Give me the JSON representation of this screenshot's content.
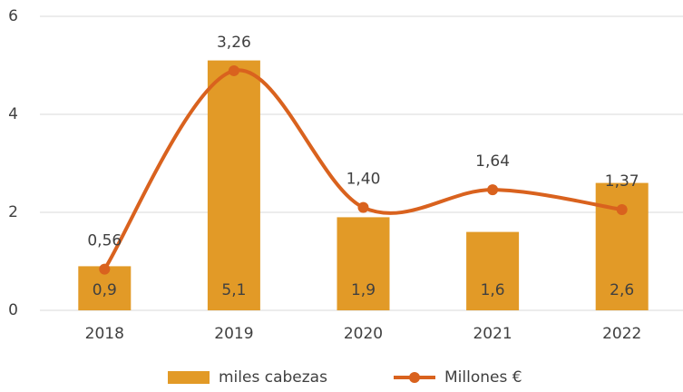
{
  "chart_data": {
    "type": "bar_line",
    "categories": [
      "2018",
      "2019",
      "2020",
      "2021",
      "2022"
    ],
    "ylim": [
      0,
      6
    ],
    "yticks": [
      0,
      2,
      4,
      6
    ],
    "y2lim": [
      0,
      4
    ],
    "grid": true,
    "legend": "bottom",
    "series": [
      {
        "name": "miles cabezas",
        "type": "bar",
        "color": "#e29a27",
        "values": [
          0.9,
          5.1,
          1.9,
          1.6,
          2.6
        ],
        "value_labels": [
          "0,9",
          "5,1",
          "1,9",
          "1,6",
          "2,6"
        ]
      },
      {
        "name": "Millones €",
        "type": "line",
        "axis": "y2",
        "color": "#d9621e",
        "values": [
          0.56,
          3.26,
          1.4,
          1.64,
          1.37
        ],
        "value_labels": [
          "0,56",
          "3,26",
          "1,40",
          "1,64",
          "1,37"
        ]
      }
    ]
  }
}
